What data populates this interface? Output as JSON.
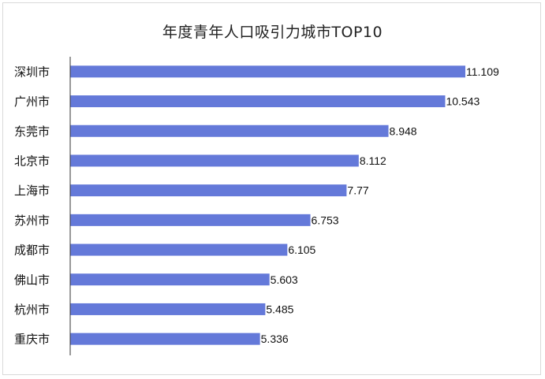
{
  "chart_data": {
    "type": "bar",
    "orientation": "horizontal",
    "title": "年度青年人口吸引力城市TOP10",
    "xlabel": "",
    "ylabel": "",
    "xlim": [
      0,
      11.5
    ],
    "grid": false,
    "bar_color": "#6479d9",
    "categories": [
      "深圳市",
      "广州市",
      "东莞市",
      "北京市",
      "上海市",
      "苏州市",
      "成都市",
      "佛山市",
      "杭州市",
      "重庆市"
    ],
    "values": [
      11.109,
      10.543,
      8.948,
      8.112,
      7.77,
      6.753,
      6.105,
      5.603,
      5.485,
      5.336
    ],
    "value_labels": [
      "11.109",
      "10.543",
      "8.948",
      "8.112",
      "7.77",
      "6.753",
      "6.105",
      "5.603",
      "5.485",
      "5.336"
    ]
  }
}
